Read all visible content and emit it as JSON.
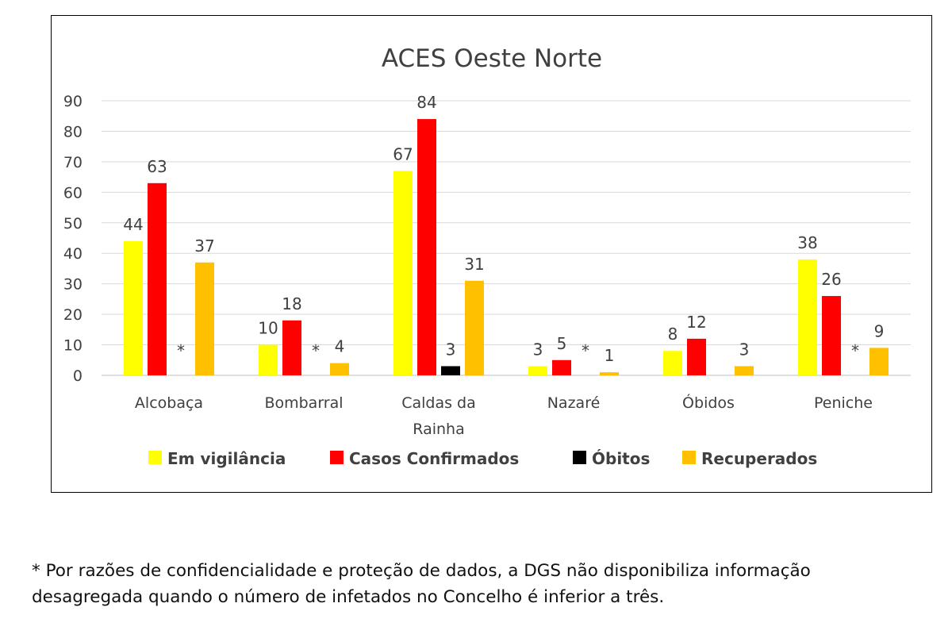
{
  "chart_data": {
    "type": "bar",
    "title": "ACES Oeste Norte",
    "categories": [
      [
        "Alcobaça"
      ],
      [
        "Bombarral"
      ],
      [
        "Caldas da",
        "Rainha"
      ],
      [
        "Nazaré"
      ],
      [
        "Óbidos"
      ],
      [
        "Peniche"
      ]
    ],
    "series": [
      {
        "name": "Em vigilância",
        "color": "#FFFF00",
        "values": [
          44,
          10,
          67,
          3,
          8,
          38
        ]
      },
      {
        "name": "Casos Confirmados",
        "color": "#FF0000",
        "values": [
          63,
          18,
          84,
          5,
          12,
          26
        ]
      },
      {
        "name": "Óbitos",
        "color": "#000000",
        "values": [
          null,
          null,
          3,
          null,
          null,
          null
        ],
        "display": [
          "*",
          "*",
          "3",
          "*",
          null,
          "*"
        ]
      },
      {
        "name": "Recuperados",
        "color": "#FFC000",
        "values": [
          37,
          4,
          31,
          1,
          3,
          9
        ]
      }
    ],
    "yticks": [
      0,
      10,
      20,
      30,
      40,
      50,
      60,
      70,
      80,
      90
    ],
    "ylim": [
      0,
      90
    ],
    "grid": true,
    "legend": "bottom"
  },
  "footnote": {
    "line1": "* Por razões de confidencialidade e proteção de dados, a DGS não disponibiliza informação",
    "line2": "desagregada quando o número de infetados no Concelho é inferior a três."
  }
}
